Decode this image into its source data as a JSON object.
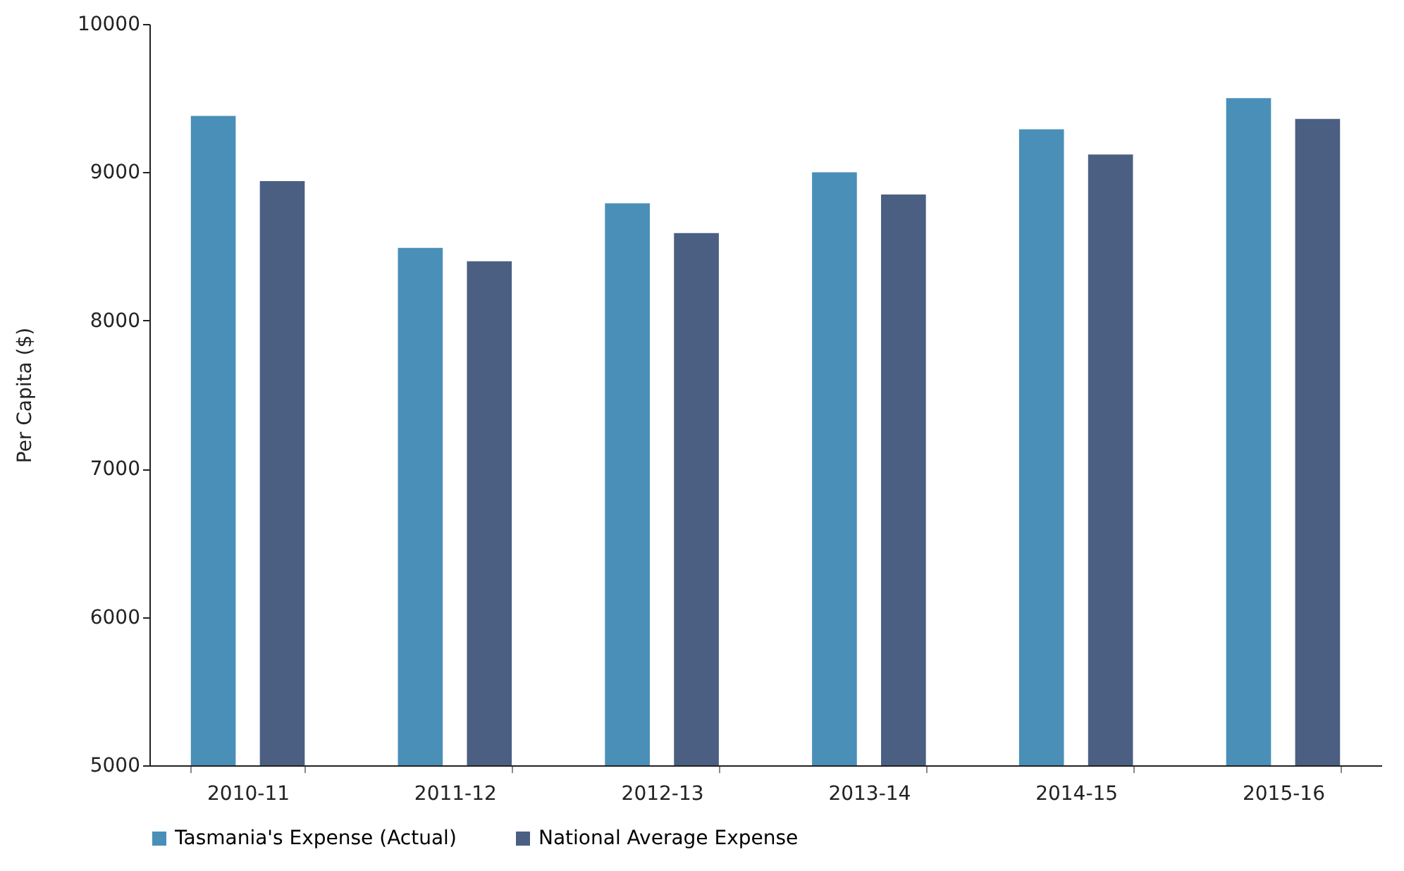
{
  "chart_data": {
    "type": "bar",
    "ylabel": "Per Capita ($)",
    "categories": [
      "2010-11",
      "2011-12",
      "2012-13",
      "2013-14",
      "2014-15",
      "2015-16"
    ],
    "series": [
      {
        "name": "Tasmania's Expense (Actual)",
        "color": "#4a8fb8",
        "values": [
          9380,
          8490,
          8790,
          9000,
          9290,
          9500
        ]
      },
      {
        "name": "National Average Expense",
        "color": "#4a5f82",
        "values": [
          8940,
          8400,
          8590,
          8850,
          9120,
          9360
        ]
      }
    ],
    "ylim": [
      5000,
      10000
    ],
    "yticks": [
      5000,
      6000,
      7000,
      8000,
      9000,
      10000
    ],
    "grid": false,
    "legend": "bottom"
  }
}
